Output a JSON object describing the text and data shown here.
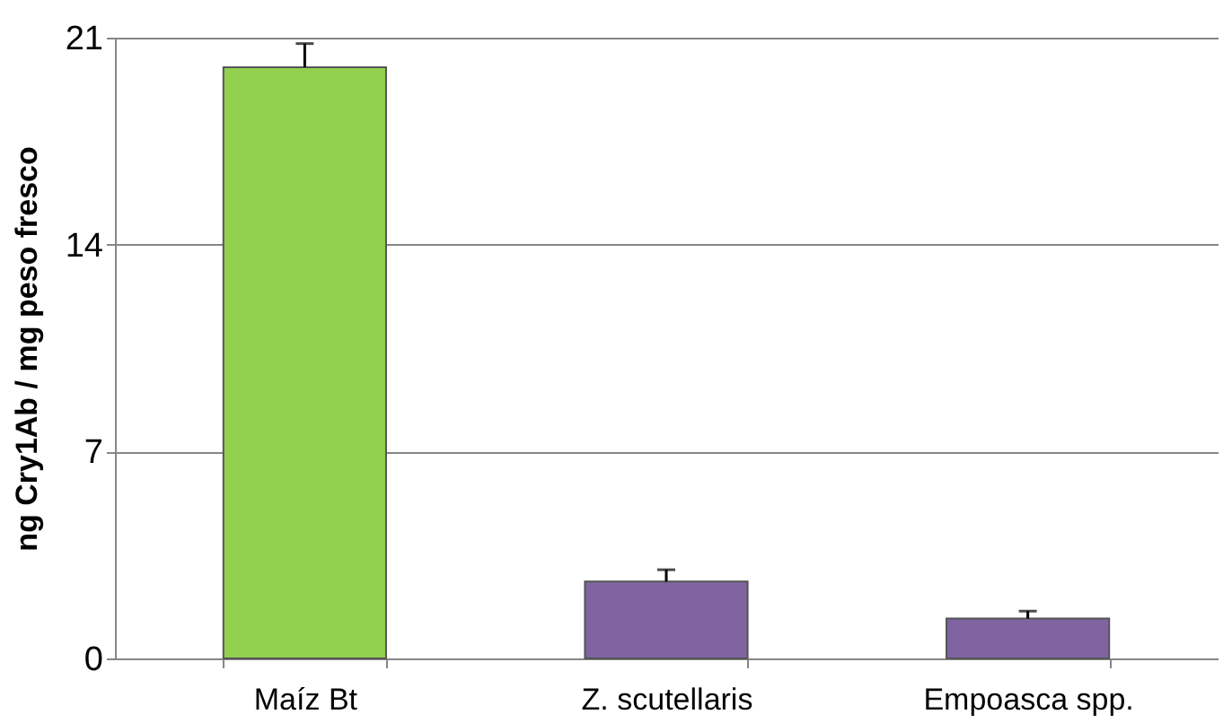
{
  "chart_data": {
    "type": "bar",
    "ylabel": "ng Cry1Ab / mg peso fresco",
    "categories": [
      "Maíz Bt",
      "Z. scutellaris",
      "Empoasca spp."
    ],
    "values": [
      20.0,
      2.6,
      1.35
    ],
    "errors": [
      0.8,
      0.4,
      0.25
    ],
    "colors": [
      "#92d050",
      "#8064a2",
      "#8064a2"
    ],
    "ylim": [
      0,
      21
    ],
    "yticks": [
      0,
      7,
      14,
      21
    ],
    "grid": "y"
  }
}
